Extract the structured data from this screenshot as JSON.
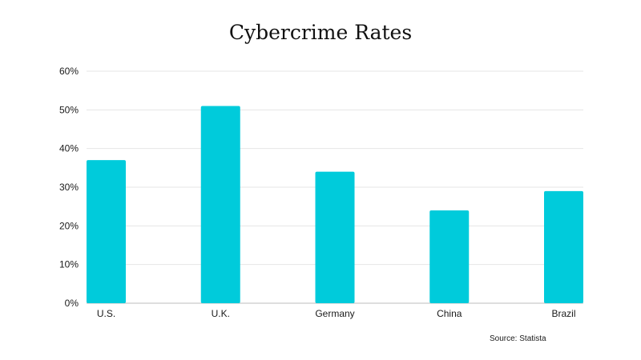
{
  "colors": {
    "bar": "#00CBDB",
    "grid": "#e6e6e6",
    "axis": "#bdbdbd"
  },
  "source": "Source: Statista",
  "chart_data": {
    "type": "bar",
    "title": "Cybercrime Rates",
    "categories": [
      "U.S.",
      "U.K.",
      "Germany",
      "China",
      "Brazil"
    ],
    "values": [
      37,
      51,
      34,
      24,
      29
    ],
    "ylim": [
      0,
      60
    ],
    "yticks": [
      "0%",
      "10%",
      "20%",
      "30%",
      "40%",
      "50%",
      "60%"
    ],
    "grid": true,
    "legend": "none"
  }
}
